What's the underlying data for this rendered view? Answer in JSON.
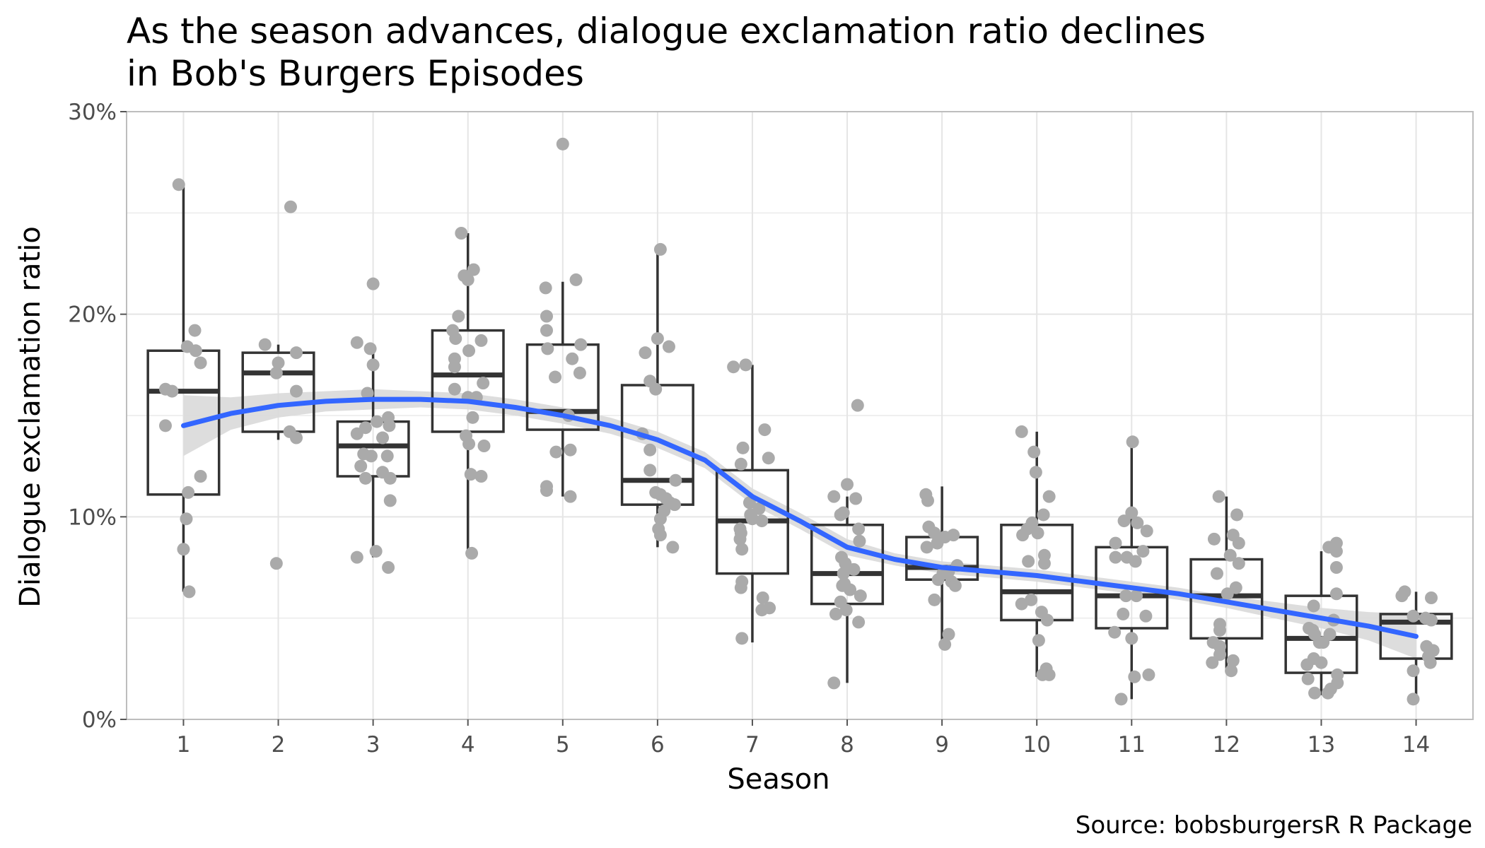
{
  "chart_data": {
    "type": "boxplot",
    "title": [
      "As the season advances, dialogue exclamation ratio declines",
      "in Bob's Burgers Episodes"
    ],
    "xlabel": "Season",
    "ylabel": "Dialogue exclamation ratio",
    "caption": "Source: bobsburgersR R Package",
    "categories": [
      "1",
      "2",
      "3",
      "4",
      "5",
      "6",
      "7",
      "8",
      "9",
      "10",
      "11",
      "12",
      "13",
      "14"
    ],
    "ylim": [
      0,
      0.3
    ],
    "y_ticks": [
      0,
      0.1,
      0.2,
      0.3
    ],
    "y_tick_labels": [
      "0%",
      "10%",
      "20%",
      "30%"
    ],
    "grid": true,
    "colors": {
      "box": "#333333",
      "point": "#aaaaaa",
      "smooth": "#3366ff",
      "band": "#d9d9d9",
      "grid": "#e5e5e5",
      "axis": "#bdbdbd"
    },
    "boxes": [
      {
        "season": 1,
        "min": 0.063,
        "q1": 0.111,
        "median": 0.162,
        "q3": 0.182,
        "max": 0.263
      },
      {
        "season": 2,
        "min": 0.138,
        "q1": 0.142,
        "median": 0.171,
        "q3": 0.181,
        "max": 0.185
      },
      {
        "season": 3,
        "min": 0.08,
        "q1": 0.12,
        "median": 0.135,
        "q3": 0.147,
        "max": 0.183
      },
      {
        "season": 4,
        "min": 0.082,
        "q1": 0.142,
        "median": 0.17,
        "q3": 0.192,
        "max": 0.24
      },
      {
        "season": 5,
        "min": 0.11,
        "q1": 0.143,
        "median": 0.152,
        "q3": 0.185,
        "max": 0.216
      },
      {
        "season": 6,
        "min": 0.085,
        "q1": 0.106,
        "median": 0.118,
        "q3": 0.165,
        "max": 0.23
      },
      {
        "season": 7,
        "min": 0.038,
        "q1": 0.072,
        "median": 0.098,
        "q3": 0.123,
        "max": 0.175
      },
      {
        "season": 8,
        "min": 0.018,
        "q1": 0.057,
        "median": 0.072,
        "q3": 0.096,
        "max": 0.11
      },
      {
        "season": 9,
        "min": 0.037,
        "q1": 0.069,
        "median": 0.075,
        "q3": 0.09,
        "max": 0.115
      },
      {
        "season": 10,
        "min": 0.021,
        "q1": 0.049,
        "median": 0.063,
        "q3": 0.096,
        "max": 0.142
      },
      {
        "season": 11,
        "min": 0.01,
        "q1": 0.045,
        "median": 0.061,
        "q3": 0.085,
        "max": 0.137
      },
      {
        "season": 12,
        "min": 0.023,
        "q1": 0.04,
        "median": 0.061,
        "q3": 0.079,
        "max": 0.11
      },
      {
        "season": 13,
        "min": 0.012,
        "q1": 0.023,
        "median": 0.04,
        "q3": 0.061,
        "max": 0.083
      },
      {
        "season": 14,
        "min": 0.01,
        "q1": 0.03,
        "median": 0.048,
        "q3": 0.052,
        "max": 0.063
      }
    ],
    "points": [
      {
        "x": 0.95,
        "y": 0.264
      },
      {
        "x": 1.12,
        "y": 0.192
      },
      {
        "x": 1.04,
        "y": 0.184
      },
      {
        "x": 1.13,
        "y": 0.182
      },
      {
        "x": 1.18,
        "y": 0.176
      },
      {
        "x": 0.81,
        "y": 0.163
      },
      {
        "x": 0.88,
        "y": 0.162
      },
      {
        "x": 0.81,
        "y": 0.145
      },
      {
        "x": 1.18,
        "y": 0.12
      },
      {
        "x": 1.05,
        "y": 0.112
      },
      {
        "x": 1.03,
        "y": 0.099
      },
      {
        "x": 1.0,
        "y": 0.084
      },
      {
        "x": 1.06,
        "y": 0.063
      },
      {
        "x": 2.13,
        "y": 0.253
      },
      {
        "x": 1.86,
        "y": 0.185
      },
      {
        "x": 2.19,
        "y": 0.181
      },
      {
        "x": 2.0,
        "y": 0.176
      },
      {
        "x": 1.98,
        "y": 0.171
      },
      {
        "x": 2.19,
        "y": 0.162
      },
      {
        "x": 2.12,
        "y": 0.142
      },
      {
        "x": 2.19,
        "y": 0.139
      },
      {
        "x": 1.98,
        "y": 0.077
      },
      {
        "x": 3.0,
        "y": 0.215
      },
      {
        "x": 2.83,
        "y": 0.186
      },
      {
        "x": 2.97,
        "y": 0.183
      },
      {
        "x": 3.0,
        "y": 0.175
      },
      {
        "x": 2.94,
        "y": 0.161
      },
      {
        "x": 3.16,
        "y": 0.149
      },
      {
        "x": 3.04,
        "y": 0.147
      },
      {
        "x": 3.17,
        "y": 0.145
      },
      {
        "x": 2.92,
        "y": 0.144
      },
      {
        "x": 2.83,
        "y": 0.141
      },
      {
        "x": 3.1,
        "y": 0.139
      },
      {
        "x": 2.9,
        "y": 0.131
      },
      {
        "x": 2.98,
        "y": 0.13
      },
      {
        "x": 3.15,
        "y": 0.13
      },
      {
        "x": 2.87,
        "y": 0.125
      },
      {
        "x": 3.1,
        "y": 0.122
      },
      {
        "x": 2.92,
        "y": 0.119
      },
      {
        "x": 3.18,
        "y": 0.119
      },
      {
        "x": 3.18,
        "y": 0.108
      },
      {
        "x": 3.03,
        "y": 0.083
      },
      {
        "x": 2.83,
        "y": 0.08
      },
      {
        "x": 3.16,
        "y": 0.075
      },
      {
        "x": 3.93,
        "y": 0.24
      },
      {
        "x": 4.06,
        "y": 0.222
      },
      {
        "x": 3.96,
        "y": 0.219
      },
      {
        "x": 4.0,
        "y": 0.217
      },
      {
        "x": 3.9,
        "y": 0.199
      },
      {
        "x": 3.84,
        "y": 0.192
      },
      {
        "x": 3.87,
        "y": 0.188
      },
      {
        "x": 4.14,
        "y": 0.187
      },
      {
        "x": 4.01,
        "y": 0.182
      },
      {
        "x": 3.86,
        "y": 0.178
      },
      {
        "x": 3.86,
        "y": 0.174
      },
      {
        "x": 4.16,
        "y": 0.166
      },
      {
        "x": 3.86,
        "y": 0.163
      },
      {
        "x": 4.0,
        "y": 0.159
      },
      {
        "x": 4.09,
        "y": 0.159
      },
      {
        "x": 4.05,
        "y": 0.149
      },
      {
        "x": 3.98,
        "y": 0.14
      },
      {
        "x": 4.01,
        "y": 0.136
      },
      {
        "x": 4.17,
        "y": 0.135
      },
      {
        "x": 4.03,
        "y": 0.121
      },
      {
        "x": 4.14,
        "y": 0.12
      },
      {
        "x": 4.04,
        "y": 0.082
      },
      {
        "x": 5.0,
        "y": 0.284
      },
      {
        "x": 5.14,
        "y": 0.217
      },
      {
        "x": 4.82,
        "y": 0.213
      },
      {
        "x": 4.83,
        "y": 0.199
      },
      {
        "x": 4.83,
        "y": 0.192
      },
      {
        "x": 5.19,
        "y": 0.185
      },
      {
        "x": 4.84,
        "y": 0.183
      },
      {
        "x": 4.92,
        "y": 0.169
      },
      {
        "x": 5.18,
        "y": 0.171
      },
      {
        "x": 5.1,
        "y": 0.178
      },
      {
        "x": 5.06,
        "y": 0.15
      },
      {
        "x": 4.93,
        "y": 0.132
      },
      {
        "x": 5.08,
        "y": 0.133
      },
      {
        "x": 4.83,
        "y": 0.115
      },
      {
        "x": 4.83,
        "y": 0.113
      },
      {
        "x": 5.08,
        "y": 0.11
      },
      {
        "x": 6.03,
        "y": 0.232
      },
      {
        "x": 6.0,
        "y": 0.188
      },
      {
        "x": 6.12,
        "y": 0.184
      },
      {
        "x": 5.87,
        "y": 0.181
      },
      {
        "x": 5.92,
        "y": 0.167
      },
      {
        "x": 5.98,
        "y": 0.163
      },
      {
        "x": 5.84,
        "y": 0.141
      },
      {
        "x": 5.92,
        "y": 0.133
      },
      {
        "x": 5.92,
        "y": 0.123
      },
      {
        "x": 6.19,
        "y": 0.118
      },
      {
        "x": 5.98,
        "y": 0.112
      },
      {
        "x": 6.03,
        "y": 0.111
      },
      {
        "x": 6.09,
        "y": 0.109
      },
      {
        "x": 6.13,
        "y": 0.107
      },
      {
        "x": 6.18,
        "y": 0.106
      },
      {
        "x": 6.07,
        "y": 0.103
      },
      {
        "x": 6.03,
        "y": 0.099
      },
      {
        "x": 6.01,
        "y": 0.094
      },
      {
        "x": 6.03,
        "y": 0.091
      },
      {
        "x": 6.16,
        "y": 0.085
      },
      {
        "x": 6.8,
        "y": 0.174
      },
      {
        "x": 6.93,
        "y": 0.175
      },
      {
        "x": 7.13,
        "y": 0.143
      },
      {
        "x": 6.9,
        "y": 0.134
      },
      {
        "x": 7.17,
        "y": 0.129
      },
      {
        "x": 6.88,
        "y": 0.126
      },
      {
        "x": 6.97,
        "y": 0.107
      },
      {
        "x": 7.07,
        "y": 0.104
      },
      {
        "x": 6.98,
        "y": 0.101
      },
      {
        "x": 7.0,
        "y": 0.099
      },
      {
        "x": 7.1,
        "y": 0.098
      },
      {
        "x": 6.87,
        "y": 0.094
      },
      {
        "x": 6.88,
        "y": 0.092
      },
      {
        "x": 6.87,
        "y": 0.089
      },
      {
        "x": 6.89,
        "y": 0.084
      },
      {
        "x": 6.89,
        "y": 0.068
      },
      {
        "x": 6.88,
        "y": 0.065
      },
      {
        "x": 7.11,
        "y": 0.06
      },
      {
        "x": 7.18,
        "y": 0.055
      },
      {
        "x": 7.1,
        "y": 0.054
      },
      {
        "x": 6.89,
        "y": 0.04
      },
      {
        "x": 8.11,
        "y": 0.155
      },
      {
        "x": 7.86,
        "y": 0.11
      },
      {
        "x": 8.09,
        "y": 0.109
      },
      {
        "x": 7.96,
        "y": 0.102
      },
      {
        "x": 7.93,
        "y": 0.101
      },
      {
        "x": 8.12,
        "y": 0.094
      },
      {
        "x": 8.13,
        "y": 0.088
      },
      {
        "x": 7.94,
        "y": 0.08
      },
      {
        "x": 7.98,
        "y": 0.077
      },
      {
        "x": 8.07,
        "y": 0.074
      },
      {
        "x": 7.96,
        "y": 0.072
      },
      {
        "x": 7.97,
        "y": 0.067
      },
      {
        "x": 7.95,
        "y": 0.066
      },
      {
        "x": 8.03,
        "y": 0.064
      },
      {
        "x": 8.14,
        "y": 0.061
      },
      {
        "x": 7.93,
        "y": 0.058
      },
      {
        "x": 7.99,
        "y": 0.054
      },
      {
        "x": 7.88,
        "y": 0.052
      },
      {
        "x": 8.12,
        "y": 0.048
      },
      {
        "x": 7.86,
        "y": 0.018
      },
      {
        "x": 8.0,
        "y": 0.116
      },
      {
        "x": 8.83,
        "y": 0.111
      },
      {
        "x": 8.85,
        "y": 0.108
      },
      {
        "x": 8.86,
        "y": 0.095
      },
      {
        "x": 8.92,
        "y": 0.092
      },
      {
        "x": 9.12,
        "y": 0.091
      },
      {
        "x": 9.03,
        "y": 0.09
      },
      {
        "x": 8.95,
        "y": 0.087
      },
      {
        "x": 8.84,
        "y": 0.085
      },
      {
        "x": 9.16,
        "y": 0.076
      },
      {
        "x": 9.07,
        "y": 0.073
      },
      {
        "x": 9.01,
        "y": 0.072
      },
      {
        "x": 8.96,
        "y": 0.069
      },
      {
        "x": 9.1,
        "y": 0.068
      },
      {
        "x": 9.14,
        "y": 0.066
      },
      {
        "x": 8.92,
        "y": 0.059
      },
      {
        "x": 9.07,
        "y": 0.042
      },
      {
        "x": 9.03,
        "y": 0.037
      },
      {
        "x": 9.84,
        "y": 0.142
      },
      {
        "x": 9.97,
        "y": 0.132
      },
      {
        "x": 9.99,
        "y": 0.122
      },
      {
        "x": 10.13,
        "y": 0.11
      },
      {
        "x": 10.07,
        "y": 0.101
      },
      {
        "x": 9.95,
        "y": 0.097
      },
      {
        "x": 9.9,
        "y": 0.094
      },
      {
        "x": 9.85,
        "y": 0.091
      },
      {
        "x": 10.01,
        "y": 0.092
      },
      {
        "x": 10.08,
        "y": 0.081
      },
      {
        "x": 9.91,
        "y": 0.078
      },
      {
        "x": 10.08,
        "y": 0.077
      },
      {
        "x": 9.94,
        "y": 0.059
      },
      {
        "x": 9.84,
        "y": 0.057
      },
      {
        "x": 10.05,
        "y": 0.053
      },
      {
        "x": 10.11,
        "y": 0.049
      },
      {
        "x": 10.02,
        "y": 0.039
      },
      {
        "x": 10.1,
        "y": 0.025
      },
      {
        "x": 10.06,
        "y": 0.022
      },
      {
        "x": 10.13,
        "y": 0.022
      },
      {
        "x": 11.01,
        "y": 0.137
      },
      {
        "x": 11.0,
        "y": 0.102
      },
      {
        "x": 10.92,
        "y": 0.098
      },
      {
        "x": 11.06,
        "y": 0.097
      },
      {
        "x": 11.16,
        "y": 0.093
      },
      {
        "x": 10.83,
        "y": 0.087
      },
      {
        "x": 11.12,
        "y": 0.083
      },
      {
        "x": 10.83,
        "y": 0.08
      },
      {
        "x": 10.95,
        "y": 0.08
      },
      {
        "x": 11.04,
        "y": 0.078
      },
      {
        "x": 10.94,
        "y": 0.061
      },
      {
        "x": 11.05,
        "y": 0.061
      },
      {
        "x": 10.91,
        "y": 0.052
      },
      {
        "x": 11.15,
        "y": 0.051
      },
      {
        "x": 10.82,
        "y": 0.043
      },
      {
        "x": 11.0,
        "y": 0.04
      },
      {
        "x": 11.18,
        "y": 0.022
      },
      {
        "x": 11.03,
        "y": 0.021
      },
      {
        "x": 10.89,
        "y": 0.01
      },
      {
        "x": 11.92,
        "y": 0.11
      },
      {
        "x": 12.11,
        "y": 0.101
      },
      {
        "x": 12.07,
        "y": 0.091
      },
      {
        "x": 11.87,
        "y": 0.089
      },
      {
        "x": 12.13,
        "y": 0.087
      },
      {
        "x": 12.04,
        "y": 0.081
      },
      {
        "x": 12.13,
        "y": 0.077
      },
      {
        "x": 11.9,
        "y": 0.072
      },
      {
        "x": 12.1,
        "y": 0.065
      },
      {
        "x": 12.01,
        "y": 0.062
      },
      {
        "x": 11.93,
        "y": 0.047
      },
      {
        "x": 11.93,
        "y": 0.044
      },
      {
        "x": 11.86,
        "y": 0.038
      },
      {
        "x": 11.93,
        "y": 0.036
      },
      {
        "x": 11.93,
        "y": 0.032
      },
      {
        "x": 11.85,
        "y": 0.028
      },
      {
        "x": 12.07,
        "y": 0.029
      },
      {
        "x": 12.05,
        "y": 0.024
      },
      {
        "x": 13.16,
        "y": 0.087
      },
      {
        "x": 13.08,
        "y": 0.085
      },
      {
        "x": 13.16,
        "y": 0.083
      },
      {
        "x": 13.16,
        "y": 0.075
      },
      {
        "x": 13.16,
        "y": 0.062
      },
      {
        "x": 12.92,
        "y": 0.056
      },
      {
        "x": 13.13,
        "y": 0.049
      },
      {
        "x": 12.87,
        "y": 0.045
      },
      {
        "x": 12.91,
        "y": 0.044
      },
      {
        "x": 12.93,
        "y": 0.042
      },
      {
        "x": 13.09,
        "y": 0.042
      },
      {
        "x": 12.98,
        "y": 0.038
      },
      {
        "x": 13.02,
        "y": 0.038
      },
      {
        "x": 12.92,
        "y": 0.03
      },
      {
        "x": 13.0,
        "y": 0.028
      },
      {
        "x": 12.85,
        "y": 0.027
      },
      {
        "x": 13.17,
        "y": 0.022
      },
      {
        "x": 12.86,
        "y": 0.02
      },
      {
        "x": 13.17,
        "y": 0.018
      },
      {
        "x": 12.93,
        "y": 0.013
      },
      {
        "x": 13.07,
        "y": 0.013
      },
      {
        "x": 13.1,
        "y": 0.015
      },
      {
        "x": 13.85,
        "y": 0.061
      },
      {
        "x": 13.88,
        "y": 0.063
      },
      {
        "x": 14.16,
        "y": 0.06
      },
      {
        "x": 13.97,
        "y": 0.051
      },
      {
        "x": 14.1,
        "y": 0.05
      },
      {
        "x": 14.16,
        "y": 0.049
      },
      {
        "x": 14.11,
        "y": 0.036
      },
      {
        "x": 14.18,
        "y": 0.034
      },
      {
        "x": 14.13,
        "y": 0.031
      },
      {
        "x": 14.15,
        "y": 0.028
      },
      {
        "x": 13.97,
        "y": 0.024
      },
      {
        "x": 13.97,
        "y": 0.01
      }
    ],
    "smooth": {
      "x": [
        1,
        1.5,
        2,
        2.5,
        3,
        3.5,
        4,
        4.5,
        5,
        5.5,
        6,
        6.5,
        7,
        7.5,
        8,
        8.5,
        9,
        9.5,
        10,
        10.5,
        11,
        11.5,
        12,
        12.5,
        13,
        13.5,
        14
      ],
      "y": [
        0.145,
        0.151,
        0.155,
        0.157,
        0.158,
        0.158,
        0.157,
        0.154,
        0.15,
        0.145,
        0.138,
        0.128,
        0.11,
        0.098,
        0.085,
        0.079,
        0.075,
        0.073,
        0.071,
        0.068,
        0.065,
        0.062,
        0.058,
        0.054,
        0.05,
        0.046,
        0.041
      ],
      "lower": [
        0.13,
        0.143,
        0.149,
        0.152,
        0.153,
        0.154,
        0.153,
        0.15,
        0.146,
        0.141,
        0.134,
        0.124,
        0.106,
        0.094,
        0.081,
        0.076,
        0.072,
        0.07,
        0.068,
        0.065,
        0.062,
        0.059,
        0.055,
        0.05,
        0.045,
        0.039,
        0.03
      ],
      "upper": [
        0.16,
        0.159,
        0.161,
        0.162,
        0.163,
        0.162,
        0.161,
        0.158,
        0.154,
        0.149,
        0.142,
        0.132,
        0.114,
        0.102,
        0.089,
        0.082,
        0.078,
        0.076,
        0.074,
        0.071,
        0.068,
        0.065,
        0.061,
        0.058,
        0.055,
        0.053,
        0.052
      ]
    }
  }
}
